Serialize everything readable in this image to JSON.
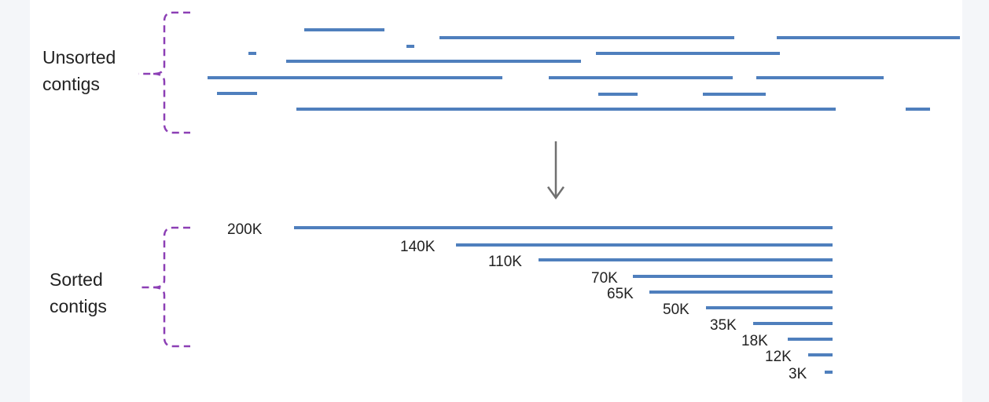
{
  "colors": {
    "contig": "#4f7fbd",
    "bracket": "#8c3fb5",
    "arrow": "#707070",
    "text": "#222222"
  },
  "groups": {
    "unsorted_label": "Unsorted\ncontigs",
    "sorted_label": "Sorted\ncontigs"
  },
  "sorted_contigs": [
    {
      "label": "200K"
    },
    {
      "label": "140K"
    },
    {
      "label": "110K"
    },
    {
      "label": "70K"
    },
    {
      "label": "65K"
    },
    {
      "label": "50K"
    },
    {
      "label": "35K"
    },
    {
      "label": "18K"
    },
    {
      "label": "12K"
    },
    {
      "label": "3K"
    }
  ]
}
